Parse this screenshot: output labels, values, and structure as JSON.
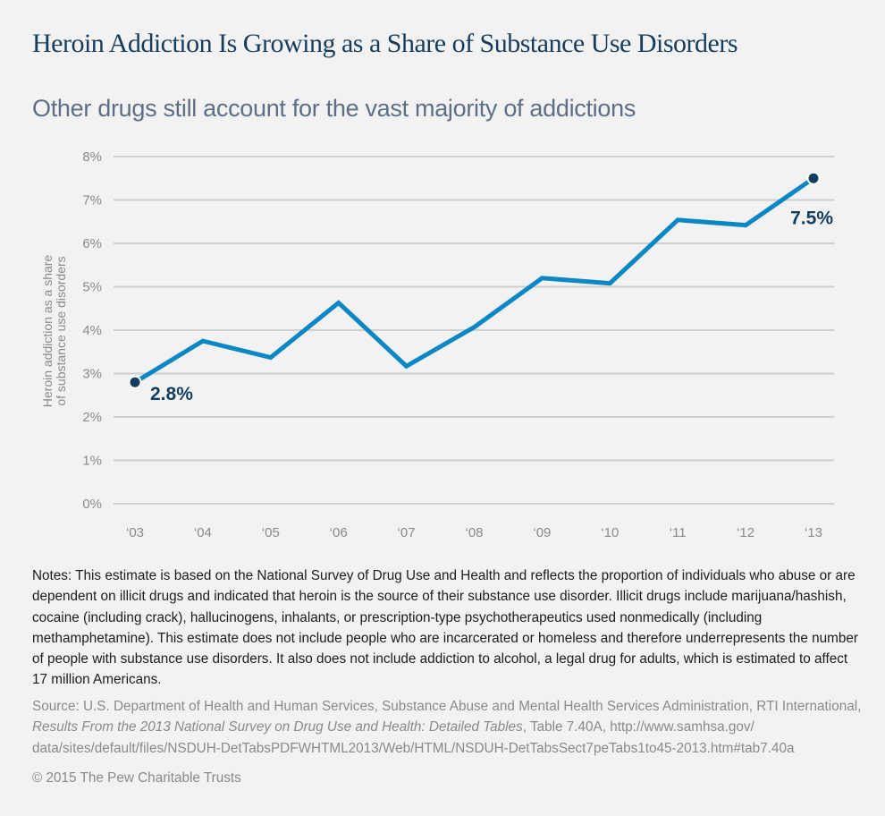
{
  "header": {
    "title": "Heroin Addiction Is Growing as a Share of Substance Use Disorders",
    "subtitle": "Other drugs still account for the vast majority of addictions"
  },
  "chart_data": {
    "type": "line",
    "title": "Heroin Addiction Is Growing as a Share of Substance Use Disorders",
    "subtitle": "Other drugs still account for the vast majority of addictions",
    "xlabel": "",
    "ylabel": "Heroin addiction as a share of substance use disorders",
    "ylabel_lines": [
      "Heroin addiction as a share",
      "of substance use disorders"
    ],
    "categories": [
      "'03",
      "'04",
      "'05",
      "'06",
      "'07",
      "'08",
      "'09",
      "'10",
      "'11",
      "'12",
      "'13"
    ],
    "series": [
      {
        "name": "Heroin share of substance use disorders",
        "color": "#0a87c4",
        "values": [
          2.8,
          3.75,
          3.37,
          4.63,
          3.17,
          4.07,
          5.2,
          5.08,
          6.54,
          6.42,
          7.5
        ]
      }
    ],
    "yticks": [
      "0%",
      "1%",
      "2%",
      "3%",
      "4%",
      "5%",
      "6%",
      "7%",
      "8%"
    ],
    "ylim": [
      0,
      8
    ],
    "grid": true,
    "annotations": [
      {
        "index": 0,
        "label": "2.8%",
        "position": "below-right"
      },
      {
        "index": 10,
        "label": "7.5%",
        "position": "below-left"
      }
    ],
    "marker_color": "#133e5f",
    "gridline_color": "#cfcfcf"
  },
  "notes": "Notes: This estimate is based on the National Survey of Drug Use and Health and reflects the proportion of individuals who abuse or are dependent on illicit drugs and indicated that heroin is the source of their substance use disorder. Illicit drugs include marijuana/hashish, cocaine (including crack), hallucinogens, inhalants, or prescription-type psychotherapeutics used nonmedically (including methamphetamine). This estimate does not include people who are incarcerated or homeless and therefore underrepresents the number of people with substance use disorders. It also does not include addiction to alcohol, a legal drug for adults, which is estimated to affect 17 million Americans.",
  "source": {
    "prefix": "Source: U.S. Department of Health and Human Services, Substance Abuse and Mental Health Services Administration, RTI International, ",
    "title_italic": "Results From the 2013 National Survey on Drug Use and Health: Detailed Tables",
    "suffix": ", Table 7.40A, http://www.samhsa.gov/ data/sites/default/files/NSDUH-DetTabsPDFWHTML2013/Web/HTML/NSDUH-DetTabsSect7peTabs1to45-2013.htm#tab7.40a"
  },
  "copyright": "© 2015 The Pew Charitable Trusts"
}
